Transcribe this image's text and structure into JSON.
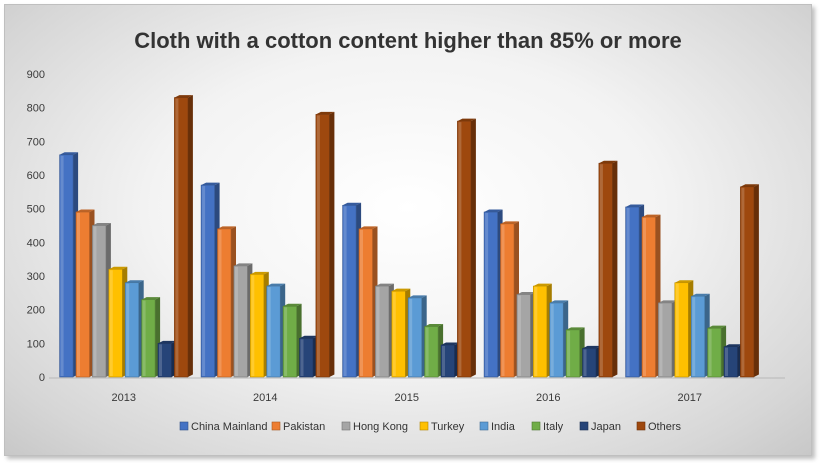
{
  "chart_data": {
    "type": "bar",
    "title": "Cloth with a cotton content higher than 85% or more",
    "categories": [
      "2013",
      "2014",
      "2015",
      "2016",
      "2017"
    ],
    "yticks": [
      "0",
      "100",
      "200",
      "300",
      "400",
      "500",
      "600",
      "700",
      "800",
      "900"
    ],
    "ylim": [
      0,
      900
    ],
    "legend_position": "bottom",
    "series": [
      {
        "name": "China Mainland",
        "color": "#4472c4",
        "values": [
          660,
          570,
          510,
          490,
          505
        ]
      },
      {
        "name": "Pakistan",
        "color": "#ed7d31",
        "values": [
          490,
          440,
          440,
          455,
          475
        ]
      },
      {
        "name": "Hong Kong",
        "color": "#a5a5a5",
        "values": [
          450,
          330,
          270,
          245,
          220
        ]
      },
      {
        "name": "Turkey",
        "color": "#ffc000",
        "values": [
          320,
          305,
          255,
          270,
          280
        ]
      },
      {
        "name": "India",
        "color": "#5b9bd5",
        "values": [
          280,
          270,
          235,
          220,
          240
        ]
      },
      {
        "name": "Italy",
        "color": "#70ad47",
        "values": [
          230,
          210,
          150,
          140,
          145
        ]
      },
      {
        "name": "Japan",
        "color": "#264478",
        "values": [
          100,
          115,
          95,
          85,
          90
        ]
      },
      {
        "name": "Others",
        "color": "#9e480e",
        "values": [
          830,
          780,
          760,
          635,
          565
        ]
      }
    ]
  }
}
